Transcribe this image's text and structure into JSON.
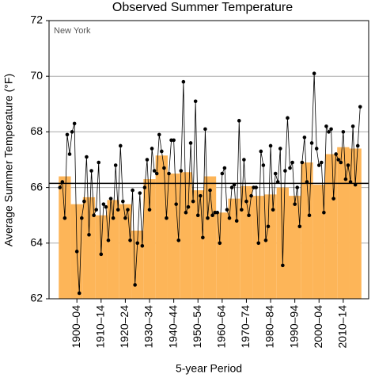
{
  "chart_data": {
    "type": "bar_line",
    "title": "Observed Summer Temperature",
    "annotation": "New York",
    "xlabel": "5-year Period",
    "ylabel": "Average Summer Temperature (°F)",
    "categories": [
      null,
      "1900–04",
      null,
      "1910–14",
      null,
      "1920–24",
      null,
      "1930–34",
      null,
      "1940–44",
      null,
      "1950–54",
      null,
      "1960–64",
      null,
      "1970–74",
      null,
      "1980–84",
      null,
      "1990–94",
      null,
      "2000–04",
      null,
      "2010–14",
      null
    ],
    "values": [
      66.4,
      65.4,
      65.65,
      65.0,
      65.55,
      65.4,
      64.45,
      66.3,
      67.15,
      66.5,
      66.55,
      65.9,
      66.4,
      65.1,
      65.6,
      66.05,
      65.7,
      65.75,
      66.0,
      65.7,
      66.9,
      66.1,
      67.2,
      67.45,
      67.4
    ],
    "color": "#fdb558",
    "x": [
      1895,
      1896,
      1897,
      1898,
      1899,
      1900,
      1901,
      1902,
      1903,
      1904,
      1905,
      1906,
      1907,
      1908,
      1909,
      1910,
      1911,
      1912,
      1913,
      1914,
      1915,
      1916,
      1917,
      1918,
      1919,
      1920,
      1921,
      1922,
      1923,
      1924,
      1925,
      1926,
      1927,
      1928,
      1929,
      1930,
      1931,
      1932,
      1933,
      1934,
      1935,
      1936,
      1937,
      1938,
      1939,
      1940,
      1941,
      1942,
      1943,
      1944,
      1945,
      1946,
      1947,
      1948,
      1949,
      1950,
      1951,
      1952,
      1953,
      1954,
      1955,
      1956,
      1957,
      1958,
      1959,
      1960,
      1961,
      1962,
      1963,
      1964,
      1965,
      1966,
      1967,
      1968,
      1969,
      1970,
      1971,
      1972,
      1973,
      1974,
      1975,
      1976,
      1977,
      1978,
      1979,
      1980,
      1981,
      1982,
      1983,
      1984,
      1985,
      1986,
      1987,
      1988,
      1989,
      1990,
      1991,
      1992,
      1993,
      1994,
      1995,
      1996,
      1997,
      1998,
      1999,
      2000,
      2001,
      2002,
      2003,
      2004,
      2005,
      2006,
      2007,
      2008,
      2009,
      2010,
      2011,
      2012,
      2013,
      2014,
      2015,
      2016,
      2017,
      2018,
      2019
    ],
    "annual": [
      66.0,
      66.2,
      64.9,
      67.9,
      67.2,
      68.0,
      68.3,
      63.7,
      62.2,
      64.9,
      65.5,
      67.1,
      64.3,
      66.6,
      65.0,
      65.2,
      66.9,
      63.6,
      65.4,
      65.3,
      64.1,
      65.6,
      64.9,
      66.8,
      65.2,
      67.5,
      65.5,
      64.9,
      65.2,
      64.1,
      65.9,
      62.5,
      64.0,
      65.8,
      63.9,
      66.0,
      67.0,
      65.2,
      67.4,
      66.6,
      66.5,
      67.9,
      67.3,
      66.7,
      64.9,
      66.5,
      67.7,
      67.7,
      65.4,
      64.1,
      66.6,
      69.8,
      65.1,
      65.3,
      67.6,
      65.5,
      69.1,
      65.0,
      65.7,
      64.2,
      68.1,
      64.9,
      65.9,
      65.0,
      65.1,
      65.1,
      64.0,
      66.5,
      66.7,
      65.2,
      64.9,
      66.0,
      66.1,
      64.8,
      68.4,
      65.2,
      67.0,
      65.5,
      65.0,
      65.7,
      66.0,
      66.0,
      64.0,
      67.3,
      66.8,
      64.1,
      64.6,
      67.5,
      65.2,
      66.5,
      66.2,
      67.4,
      63.2,
      66.6,
      68.5,
      66.7,
      66.9,
      65.4,
      66.0,
      64.6,
      66.9,
      67.8,
      66.2,
      65.0,
      67.6,
      70.1,
      67.4,
      66.8,
      66.9,
      65.1,
      68.2,
      68.0,
      68.1,
      65.6,
      67.2,
      67.0,
      66.9,
      68.0,
      66.3,
      66.8,
      66.2,
      68.2,
      66.1,
      67.5,
      68.9
    ],
    "line_color": "#000000",
    "average": 66.15,
    "xlim": [
      1890.5,
      2022.5
    ],
    "ylim": [
      62,
      72
    ],
    "yticks": [
      62,
      64,
      66,
      68,
      70,
      72
    ],
    "grid": true
  }
}
